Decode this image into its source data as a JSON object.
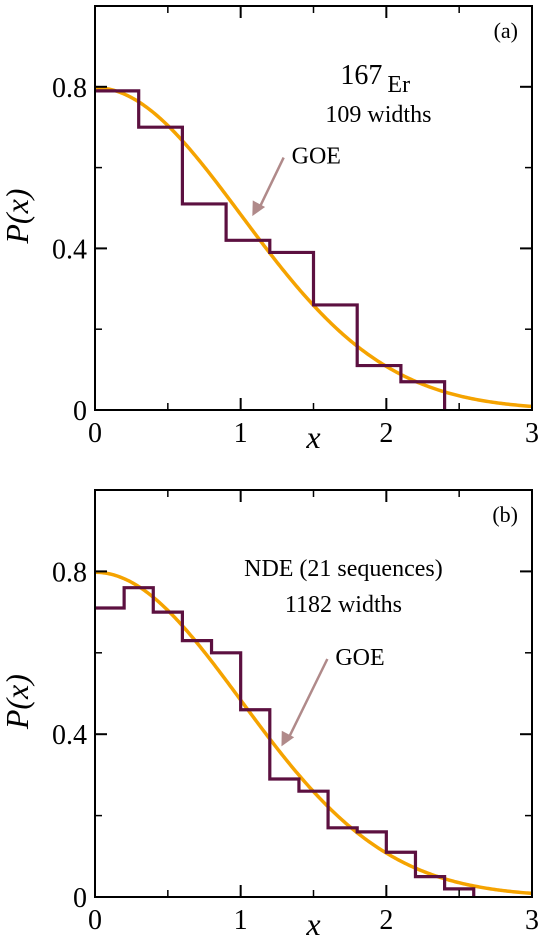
{
  "chart_data": [
    {
      "type": "line",
      "panel": "(a)",
      "xlabel": "x",
      "ylabel": "P(x)",
      "xlim": [
        0,
        3
      ],
      "ylim": [
        0,
        1.0
      ],
      "xticks": [
        0,
        1,
        2,
        3
      ],
      "xtick_labels": [
        "0",
        "1",
        "2",
        "3"
      ],
      "yticks": [
        0,
        0.4,
        0.8
      ],
      "ytick_labels": [
        "0",
        "0.4",
        "0.8"
      ],
      "grid": false,
      "annotation_main": "167",
      "annotation_sub": "Er",
      "annotation_line2": "109 widths",
      "goe_label": "GOE",
      "series": [
        {
          "kind": "step",
          "color": "#5c1040",
          "edges": [
            0,
            0.3,
            0.6,
            0.9,
            1.2,
            1.5,
            1.8,
            2.1,
            2.4
          ],
          "values": [
            0.79,
            0.7,
            0.51,
            0.42,
            0.39,
            0.26,
            0.11,
            0.07
          ]
        },
        {
          "kind": "curve",
          "color": "#f5a300",
          "formula": "sqrt(2/pi) * exp(-x^2/2)"
        }
      ]
    },
    {
      "type": "line",
      "panel": "(b)",
      "xlabel": "x",
      "ylabel": "P(x)",
      "xlim": [
        0,
        3
      ],
      "ylim": [
        0,
        1.0
      ],
      "xticks": [
        0,
        1,
        2,
        3
      ],
      "xtick_labels": [
        "0",
        "1",
        "2",
        "3"
      ],
      "yticks": [
        0,
        0.4,
        0.8
      ],
      "ytick_labels": [
        "0",
        "0.4",
        "0.8"
      ],
      "grid": false,
      "annotation_line1": "NDE (21 sequences)",
      "annotation_line2": "1182 widths",
      "goe_label": "GOE",
      "series": [
        {
          "kind": "step",
          "color": "#5c1040",
          "edges": [
            0,
            0.2,
            0.4,
            0.6,
            0.8,
            1.0,
            1.2,
            1.4,
            1.6,
            1.8,
            2.0,
            2.2,
            2.4,
            2.6
          ],
          "values": [
            0.71,
            0.76,
            0.7,
            0.63,
            0.6,
            0.46,
            0.29,
            0.26,
            0.17,
            0.16,
            0.11,
            0.05,
            0.02
          ]
        },
        {
          "kind": "curve",
          "color": "#f5a300",
          "formula": "sqrt(2/pi) * exp(-x^2/2)"
        }
      ]
    }
  ],
  "colors": {
    "histogram": "#5c1040",
    "goe_curve": "#f5a300",
    "arrow": "#b08a8a",
    "axes": "#000000"
  }
}
